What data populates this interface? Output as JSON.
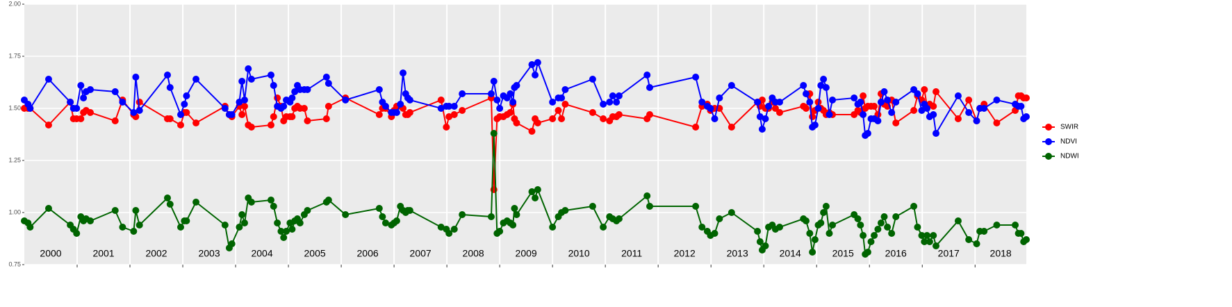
{
  "chart_data": {
    "type": "line",
    "xlim": [
      2000,
      2018.97
    ],
    "ylim": [
      0.75,
      2.0
    ],
    "yticks": [
      {
        "value": 0.75,
        "label": "0.75"
      },
      {
        "value": 1.0,
        "label": "1.00"
      },
      {
        "value": 1.25,
        "label": "1.25"
      },
      {
        "value": 1.5,
        "label": "1.50"
      },
      {
        "value": 1.75,
        "label": "1.75"
      },
      {
        "value": 2.0,
        "label": "2.00"
      }
    ],
    "year_breaks": [
      2001,
      2002,
      2003,
      2004,
      2005,
      2006,
      2007,
      2008,
      2009,
      2010,
      2011,
      2012,
      2013,
      2014,
      2015,
      2016,
      2017,
      2018
    ],
    "year_labels": [
      "2000",
      "2001",
      "2002",
      "2003",
      "2004",
      "2005",
      "2006",
      "2007",
      "2008",
      "2009",
      "2010",
      "2011",
      "2012",
      "2013",
      "2014",
      "2015",
      "2016",
      "2017",
      "2018"
    ],
    "grid": true,
    "legend": "right",
    "x": [
      2000.0,
      2000.07,
      2000.11,
      2000.46,
      2000.87,
      2000.93,
      2000.99,
      2001.07,
      2001.12,
      2001.17,
      2001.25,
      2001.72,
      2001.86,
      2002.07,
      2002.11,
      2002.18,
      2002.71,
      2002.76,
      2002.96,
      2003.03,
      2003.07,
      2003.25,
      2003.8,
      2003.88,
      2003.93,
      2004.07,
      2004.12,
      2004.17,
      2004.24,
      2004.3,
      2004.67,
      2004.72,
      2004.79,
      2004.86,
      2004.91,
      2004.96,
      2005.03,
      2005.07,
      2005.12,
      2005.17,
      2005.22,
      2005.3,
      2005.36,
      2005.72,
      2005.76,
      2006.08,
      2006.72,
      2006.78,
      2006.84,
      2006.95,
      2007.0,
      2007.05,
      2007.12,
      2007.17,
      2007.22,
      2007.26,
      2007.3,
      2007.89,
      2007.99,
      2008.04,
      2008.14,
      2008.29,
      2008.84,
      2008.89,
      2008.95,
      2009.0,
      2009.07,
      2009.14,
      2009.2,
      2009.25,
      2009.28,
      2009.32,
      2009.61,
      2009.67,
      2009.72,
      2010.0,
      2010.11,
      2010.17,
      2010.24,
      2010.76,
      2010.96,
      2011.08,
      2011.14,
      2011.21,
      2011.26,
      2011.79,
      2011.84,
      2012.71,
      2012.83,
      2012.93,
      2012.99,
      2013.07,
      2013.16,
      2013.39,
      2013.88,
      2013.93,
      2013.97,
      2014.03,
      2014.09,
      2014.16,
      2014.22,
      2014.3,
      2014.75,
      2014.8,
      2014.87,
      2014.92,
      2014.97,
      2015.03,
      2015.08,
      2015.13,
      2015.18,
      2015.24,
      2015.3,
      2015.71,
      2015.78,
      2015.83,
      2015.88,
      2015.92,
      2015.97,
      2016.03,
      2016.09,
      2016.16,
      2016.22,
      2016.28,
      2016.34,
      2016.42,
      2016.5,
      2016.84,
      2016.91,
      2016.99,
      2017.04,
      2017.09,
      2017.14,
      2017.21,
      2017.26,
      2017.68,
      2017.88,
      2018.03,
      2018.09,
      2018.17,
      2018.41,
      2018.76,
      2018.82,
      2018.87,
      2018.92,
      2018.97
    ],
    "series": [
      {
        "name": "SWIR",
        "color": "#ff0000",
        "values": [
          1.5,
          1.5,
          1.5,
          1.42,
          1.53,
          1.45,
          1.45,
          1.45,
          1.48,
          1.49,
          1.48,
          1.44,
          1.54,
          1.47,
          1.46,
          1.53,
          1.45,
          1.45,
          1.42,
          1.48,
          1.48,
          1.43,
          1.51,
          1.47,
          1.46,
          1.51,
          1.47,
          1.51,
          1.42,
          1.41,
          1.42,
          1.46,
          1.55,
          1.51,
          1.44,
          1.46,
          1.46,
          1.46,
          1.5,
          1.51,
          1.5,
          1.5,
          1.44,
          1.45,
          1.51,
          1.55,
          1.47,
          1.5,
          1.5,
          1.46,
          1.49,
          1.51,
          1.51,
          1.5,
          1.47,
          1.47,
          1.48,
          1.54,
          1.41,
          1.46,
          1.47,
          1.49,
          1.55,
          1.11,
          1.45,
          1.46,
          1.46,
          1.47,
          1.48,
          1.52,
          1.45,
          1.43,
          1.39,
          1.45,
          1.43,
          1.45,
          1.49,
          1.45,
          1.52,
          1.48,
          1.45,
          1.44,
          1.46,
          1.46,
          1.47,
          1.45,
          1.47,
          1.41,
          1.51,
          1.52,
          1.49,
          1.5,
          1.5,
          1.41,
          1.53,
          1.51,
          1.54,
          1.5,
          1.5,
          1.53,
          1.5,
          1.48,
          1.51,
          1.5,
          1.57,
          1.46,
          1.49,
          1.53,
          1.5,
          1.49,
          1.47,
          1.48,
          1.47,
          1.47,
          1.49,
          1.48,
          1.56,
          1.5,
          1.51,
          1.51,
          1.51,
          1.47,
          1.57,
          1.52,
          1.51,
          1.54,
          1.43,
          1.49,
          1.56,
          1.54,
          1.59,
          1.51,
          1.52,
          1.51,
          1.58,
          1.45,
          1.54,
          1.44,
          1.5,
          1.52,
          1.43,
          1.49,
          1.56,
          1.56,
          1.55,
          1.55
        ]
      },
      {
        "name": "NDVI",
        "color": "#0000ff",
        "values": [
          1.54,
          1.52,
          1.5,
          1.64,
          1.53,
          1.5,
          1.5,
          1.61,
          1.55,
          1.58,
          1.59,
          1.58,
          1.53,
          1.48,
          1.65,
          1.49,
          1.66,
          1.6,
          1.47,
          1.52,
          1.56,
          1.64,
          1.5,
          1.47,
          1.47,
          1.53,
          1.63,
          1.54,
          1.69,
          1.64,
          1.66,
          1.61,
          1.51,
          1.5,
          1.51,
          1.54,
          1.53,
          1.55,
          1.58,
          1.61,
          1.59,
          1.59,
          1.59,
          1.65,
          1.62,
          1.54,
          1.59,
          1.53,
          1.51,
          1.48,
          1.48,
          1.48,
          1.52,
          1.67,
          1.57,
          1.55,
          1.54,
          1.5,
          1.51,
          1.51,
          1.51,
          1.57,
          1.57,
          1.63,
          1.54,
          1.5,
          1.56,
          1.55,
          1.57,
          1.53,
          1.6,
          1.61,
          1.71,
          1.66,
          1.72,
          1.53,
          1.55,
          1.55,
          1.59,
          1.64,
          1.52,
          1.53,
          1.56,
          1.53,
          1.56,
          1.66,
          1.6,
          1.65,
          1.53,
          1.51,
          1.5,
          1.45,
          1.55,
          1.61,
          1.53,
          1.46,
          1.4,
          1.45,
          1.51,
          1.55,
          1.53,
          1.53,
          1.61,
          1.57,
          1.53,
          1.41,
          1.42,
          1.5,
          1.61,
          1.64,
          1.6,
          1.47,
          1.54,
          1.55,
          1.52,
          1.53,
          1.47,
          1.37,
          1.38,
          1.45,
          1.45,
          1.44,
          1.53,
          1.58,
          1.54,
          1.48,
          1.53,
          1.59,
          1.57,
          1.49,
          1.52,
          1.5,
          1.46,
          1.47,
          1.38,
          1.56,
          1.48,
          1.44,
          1.5,
          1.5,
          1.54,
          1.52,
          1.51,
          1.51,
          1.45,
          1.46
        ]
      },
      {
        "name": "NDWI",
        "color": "#006400",
        "values": [
          0.96,
          0.95,
          0.93,
          1.02,
          0.94,
          0.92,
          0.9,
          0.98,
          0.96,
          0.97,
          0.96,
          1.01,
          0.93,
          0.91,
          1.01,
          0.94,
          1.07,
          1.04,
          0.93,
          0.96,
          0.96,
          1.05,
          0.94,
          0.83,
          0.85,
          0.93,
          0.99,
          0.95,
          1.07,
          1.05,
          1.06,
          1.03,
          0.95,
          0.91,
          0.88,
          0.91,
          0.95,
          0.92,
          0.96,
          0.97,
          0.95,
          0.99,
          1.01,
          1.05,
          1.06,
          0.99,
          1.02,
          0.98,
          0.95,
          0.94,
          0.95,
          0.96,
          1.03,
          1.01,
          1.0,
          1.01,
          1.01,
          0.93,
          0.92,
          0.9,
          0.92,
          0.99,
          0.98,
          1.38,
          0.9,
          0.91,
          0.95,
          0.96,
          0.95,
          0.94,
          1.02,
          0.99,
          1.1,
          1.07,
          1.11,
          0.93,
          0.98,
          1.0,
          1.01,
          1.03,
          0.93,
          0.98,
          0.97,
          0.96,
          0.97,
          1.08,
          1.03,
          1.03,
          0.93,
          0.91,
          0.89,
          0.9,
          0.97,
          1.0,
          0.91,
          0.86,
          0.82,
          0.84,
          0.93,
          0.94,
          0.92,
          0.93,
          0.97,
          0.96,
          0.9,
          0.81,
          0.87,
          0.94,
          0.95,
          1.0,
          1.03,
          0.9,
          0.94,
          0.99,
          0.97,
          0.94,
          0.89,
          0.8,
          0.81,
          0.86,
          0.89,
          0.92,
          0.95,
          0.98,
          0.93,
          0.9,
          0.98,
          1.03,
          0.93,
          0.89,
          0.86,
          0.89,
          0.86,
          0.89,
          0.84,
          0.96,
          0.87,
          0.85,
          0.91,
          0.91,
          0.94,
          0.94,
          0.9,
          0.9,
          0.86,
          0.87
        ]
      }
    ]
  }
}
